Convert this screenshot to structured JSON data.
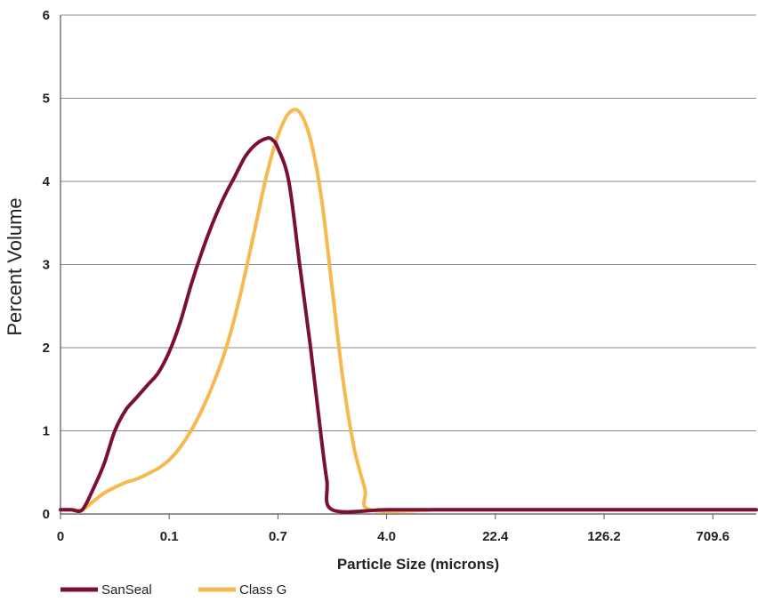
{
  "chart_data": {
    "type": "line",
    "title": "",
    "xlabel": "Particle Size (microns)",
    "ylabel": "Percent Volume",
    "x_tick_labels": [
      "0",
      "0.1",
      "0.7",
      "4.0",
      "22.4",
      "126.2",
      "709.6"
    ],
    "y_ticks": [
      0,
      1,
      2,
      3,
      4,
      5,
      6
    ],
    "ylim": [
      0,
      6
    ],
    "grid": "horizontal",
    "legend_position": "bottom-left",
    "series": [
      {
        "name": "SanSeal",
        "color": "#7a1035",
        "points": [
          [
            0,
            0.05
          ],
          [
            0.1,
            0.05
          ],
          [
            0.2,
            0.05
          ],
          [
            0.3,
            0.3
          ],
          [
            0.4,
            0.6
          ],
          [
            0.5,
            1.0
          ],
          [
            0.6,
            1.25
          ],
          [
            0.7,
            1.4
          ],
          [
            0.8,
            1.55
          ],
          [
            0.9,
            1.7
          ],
          [
            1.0,
            1.95
          ],
          [
            1.1,
            2.3
          ],
          [
            1.2,
            2.75
          ],
          [
            1.3,
            3.15
          ],
          [
            1.4,
            3.5
          ],
          [
            1.5,
            3.8
          ],
          [
            1.6,
            4.05
          ],
          [
            1.7,
            4.3
          ],
          [
            1.8,
            4.45
          ],
          [
            1.9,
            4.52
          ],
          [
            1.95,
            4.5
          ],
          [
            2.0,
            4.4
          ],
          [
            2.1,
            4.0
          ],
          [
            2.2,
            3.0
          ],
          [
            2.3,
            2.0
          ],
          [
            2.4,
            0.9
          ],
          [
            2.45,
            0.4
          ],
          [
            2.5,
            0.05
          ],
          [
            3.0,
            0.05
          ],
          [
            3.5,
            0.05
          ],
          [
            4.0,
            0.05
          ],
          [
            4.55,
            0.05
          ],
          [
            6.4,
            0.05
          ]
        ]
      },
      {
        "name": "Class G",
        "color": "#f7b84f",
        "points": [
          [
            0,
            0.05
          ],
          [
            0.1,
            0.05
          ],
          [
            0.2,
            0.05
          ],
          [
            0.3,
            0.15
          ],
          [
            0.4,
            0.25
          ],
          [
            0.5,
            0.32
          ],
          [
            0.6,
            0.38
          ],
          [
            0.7,
            0.42
          ],
          [
            0.8,
            0.48
          ],
          [
            0.9,
            0.55
          ],
          [
            1.0,
            0.65
          ],
          [
            1.1,
            0.8
          ],
          [
            1.2,
            1.0
          ],
          [
            1.3,
            1.25
          ],
          [
            1.4,
            1.55
          ],
          [
            1.5,
            1.9
          ],
          [
            1.6,
            2.35
          ],
          [
            1.7,
            2.9
          ],
          [
            1.8,
            3.5
          ],
          [
            1.9,
            4.1
          ],
          [
            2.0,
            4.55
          ],
          [
            2.1,
            4.82
          ],
          [
            2.2,
            4.83
          ],
          [
            2.3,
            4.5
          ],
          [
            2.4,
            3.8
          ],
          [
            2.5,
            2.7
          ],
          [
            2.6,
            1.6
          ],
          [
            2.7,
            0.8
          ],
          [
            2.8,
            0.3
          ],
          [
            2.85,
            0.05
          ],
          [
            3.5,
            0.05
          ],
          [
            4.0,
            0.05
          ],
          [
            6.4,
            0.05
          ]
        ]
      }
    ]
  }
}
